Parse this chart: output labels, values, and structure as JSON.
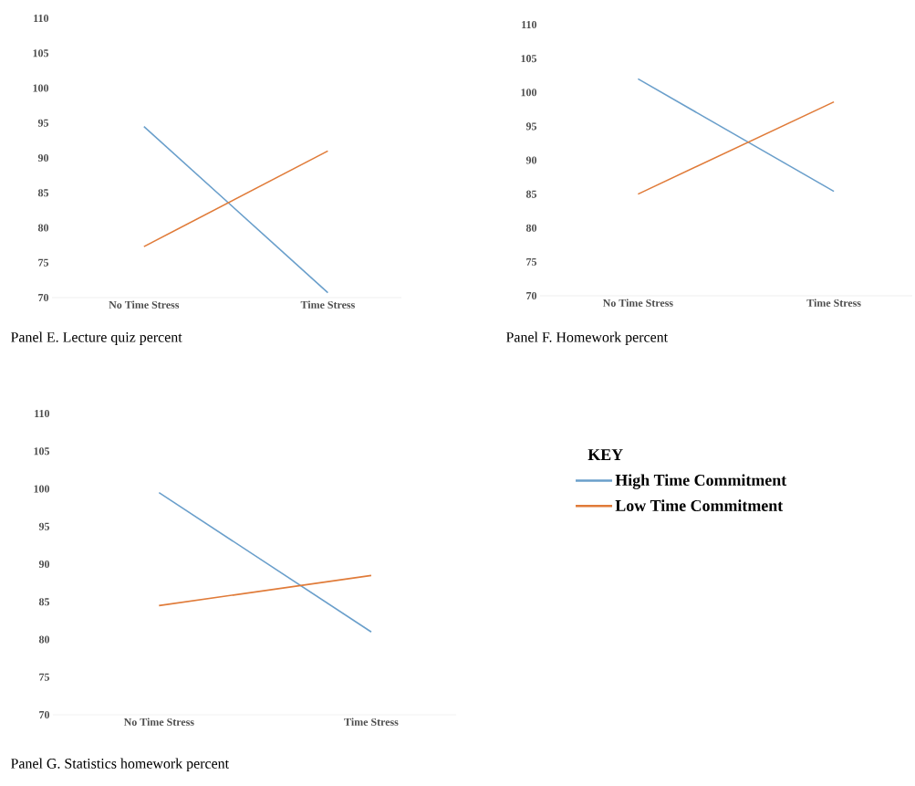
{
  "chart_data": [
    {
      "type": "line",
      "title": "Panel E. Lecture quiz percent",
      "categories": [
        "No Time Stress",
        "Time Stress"
      ],
      "ylim": [
        70,
        110
      ],
      "yticks": [
        70,
        75,
        80,
        85,
        90,
        95,
        100,
        105,
        110
      ],
      "series": [
        {
          "color": "#6a9fcb",
          "values": [
            94.5,
            70.7
          ]
        },
        {
          "color": "#e07b39",
          "values": [
            77.3,
            91.0
          ]
        }
      ]
    },
    {
      "type": "line",
      "title": "Panel F. Homework percent",
      "categories": [
        "No Time Stress",
        "Time Stress"
      ],
      "ylim": [
        70,
        110
      ],
      "yticks": [
        70,
        75,
        80,
        85,
        90,
        95,
        100,
        105,
        110
      ],
      "series": [
        {
          "color": "#6a9fcb",
          "values": [
            102.0,
            85.4
          ]
        },
        {
          "color": "#e07b39",
          "values": [
            85.0,
            98.6
          ]
        }
      ]
    },
    {
      "type": "line",
      "title": "Panel G. Statistics homework percent",
      "categories": [
        "No Time Stress",
        "Time Stress"
      ],
      "ylim": [
        70,
        110
      ],
      "yticks": [
        70,
        75,
        80,
        85,
        90,
        95,
        100,
        105,
        110
      ],
      "legend": "right",
      "legend_title": "KEY",
      "series": [
        {
          "name": "High Time Commitment",
          "color": "#6a9fcb",
          "values": [
            99.5,
            81.0
          ]
        },
        {
          "name": "Low Time Commitment",
          "color": "#e07b39",
          "values": [
            84.5,
            88.5
          ]
        }
      ]
    }
  ]
}
